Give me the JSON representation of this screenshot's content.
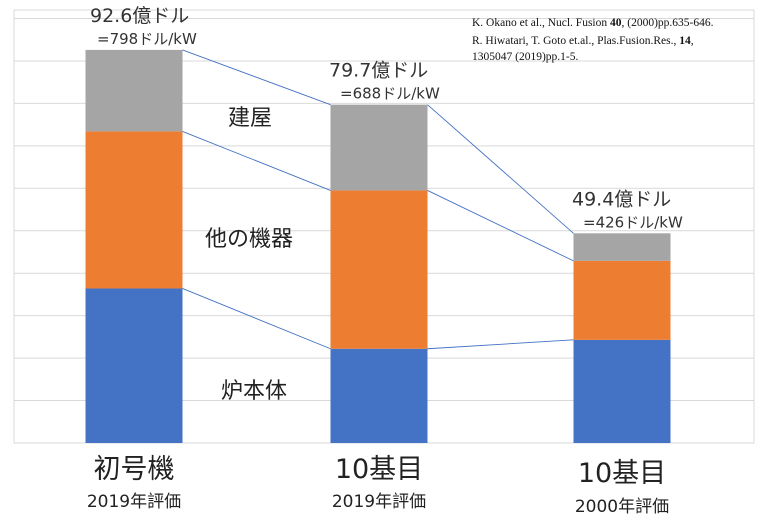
{
  "chart_data": {
    "type": "bar",
    "stacked": true,
    "categories": [
      {
        "main": "初号機",
        "sub": "2019年評価"
      },
      {
        "main": "10基目",
        "sub": "2019年評価"
      },
      {
        "main": "10基目",
        "sub": "2000年評価"
      }
    ],
    "series": [
      {
        "name": "炉本体",
        "color": "#4472c4",
        "values": [
          36.4,
          22.2,
          24.3
        ]
      },
      {
        "name": "他の機器",
        "color": "#ed7d31",
        "values": [
          37.0,
          37.3,
          18.6
        ]
      },
      {
        "name": "建屋",
        "color": "#a5a5a5",
        "values": [
          19.2,
          20.2,
          6.5
        ]
      }
    ],
    "totals": [
      "92.6億ドル",
      "79.7億ドル",
      "49.4億ドル"
    ],
    "per_kw": [
      "=798ドル/kW",
      "=688ドル/kW",
      "=426ドル/kW"
    ],
    "ylim": [
      0,
      102
    ],
    "grid_step": 10,
    "grid": true,
    "connector_lines": true,
    "references": [
      {
        "pre": "K. Okano et al., Nucl. Fusion ",
        "bold": "40",
        "post": ", (2000)pp.635-646."
      },
      {
        "pre": "R. Hiwatari, T. Goto et.al., Plas.Fusion.Res., ",
        "bold": "14",
        "post": ","
      },
      {
        "pre": "1305047 (2019)pp.1-5.",
        "bold": "",
        "post": ""
      }
    ]
  }
}
